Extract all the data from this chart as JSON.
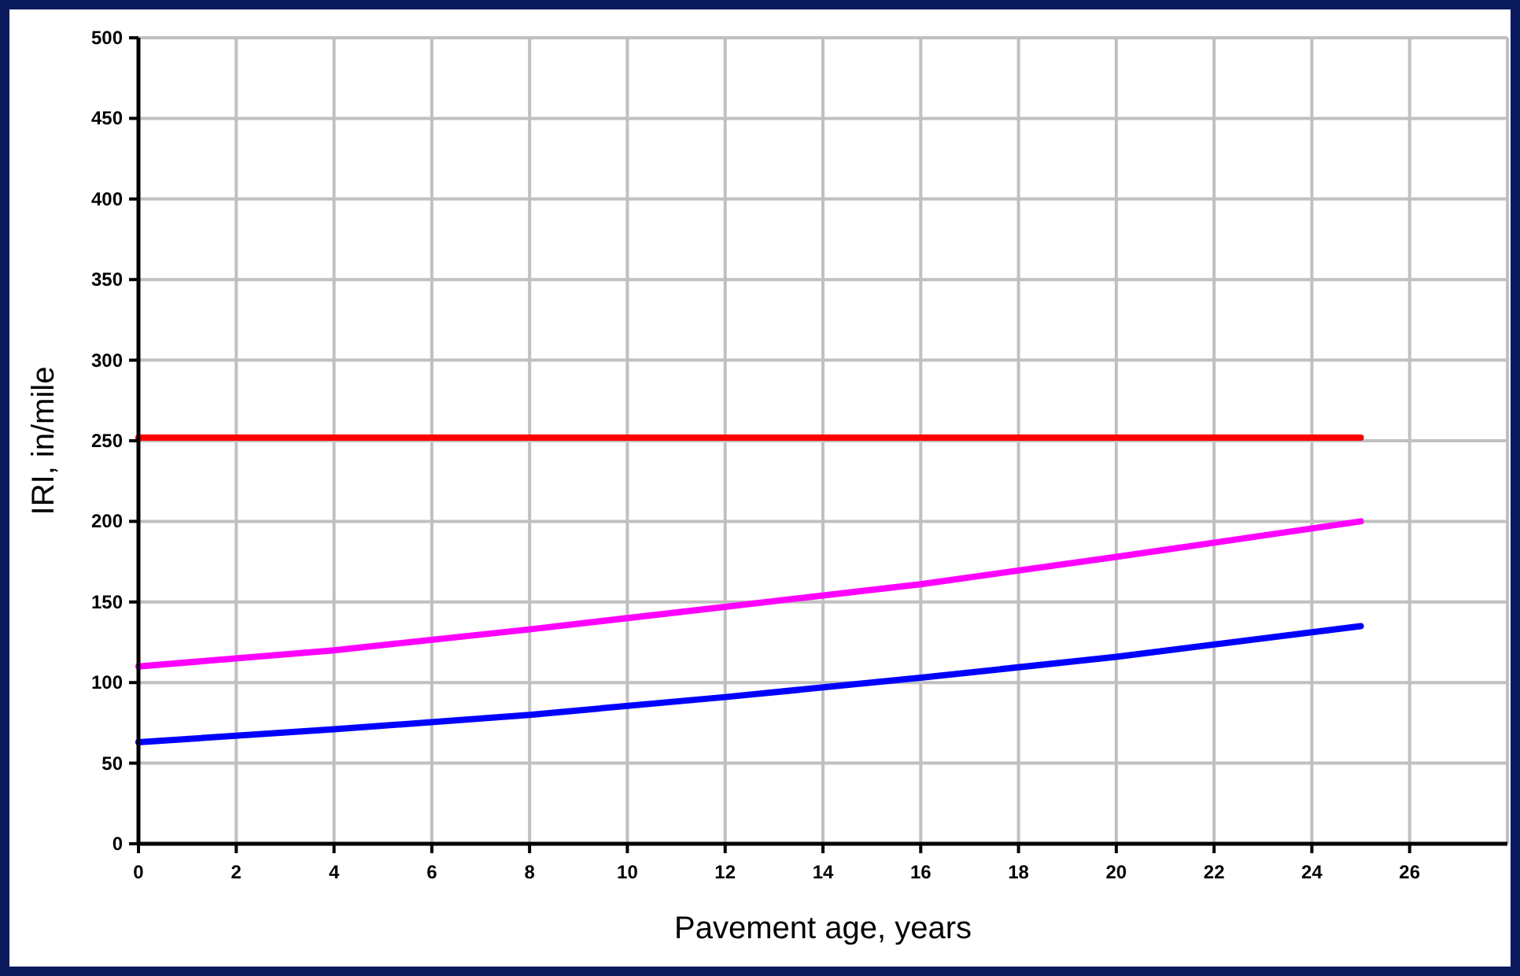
{
  "chart_data": {
    "type": "line",
    "xlabel": "Pavement age, years",
    "ylabel": "IRI, in/mile",
    "xlim": [
      0,
      28
    ],
    "xticks": [
      0,
      2,
      4,
      6,
      8,
      10,
      12,
      14,
      16,
      18,
      20,
      22,
      24,
      26
    ],
    "ylim": [
      0,
      500
    ],
    "yticks": [
      0,
      50,
      100,
      150,
      200,
      250,
      300,
      350,
      400,
      450,
      500
    ],
    "grid": true,
    "marker": "none",
    "line_style": "solid",
    "series": [
      {
        "color": "#ff0000",
        "x": [
          0,
          25
        ],
        "values": [
          252,
          252
        ]
      },
      {
        "color": "#ff00ff",
        "x": [
          0,
          4,
          8,
          12,
          16,
          20,
          25
        ],
        "values": [
          110,
          120,
          133,
          147,
          161,
          178,
          200
        ]
      },
      {
        "color": "#0000ff",
        "x": [
          0,
          4,
          8,
          12,
          16,
          20,
          25
        ],
        "values": [
          63,
          71,
          80,
          91,
          103,
          116,
          135
        ]
      }
    ]
  }
}
